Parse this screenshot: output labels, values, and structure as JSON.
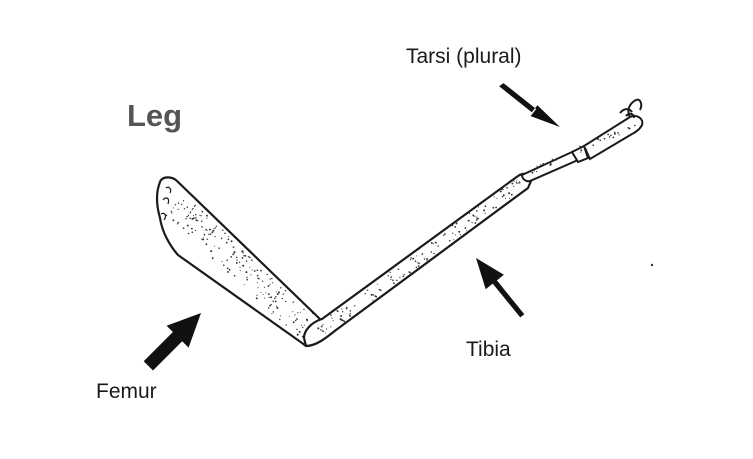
{
  "diagram": {
    "title": "Leg",
    "labels": {
      "tarsi": "Tarsi (plural)",
      "tibia": "Tibia",
      "femur": "Femur"
    },
    "colors": {
      "ink": "#1a1a1a",
      "title": "#555555",
      "background": "#ffffff"
    }
  }
}
